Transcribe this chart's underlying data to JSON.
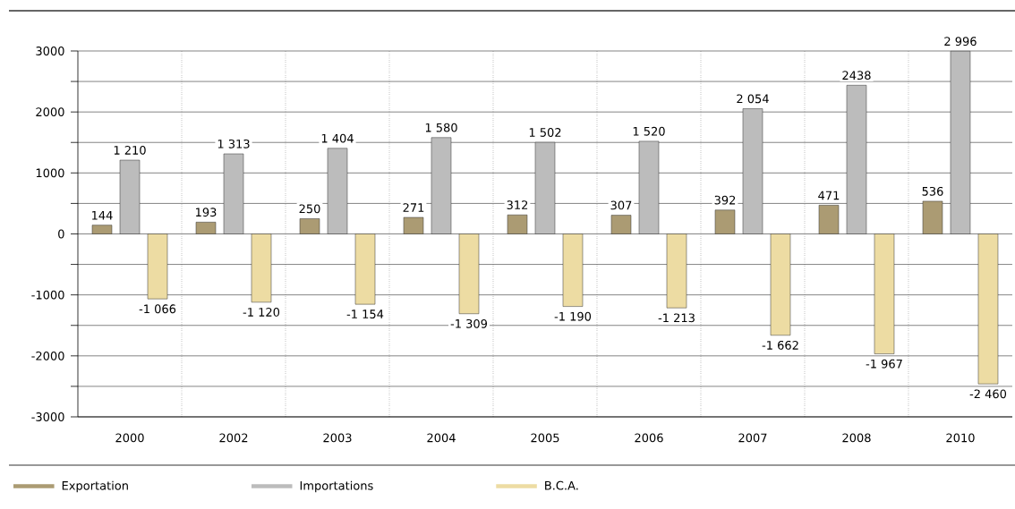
{
  "chart_data": {
    "type": "bar",
    "categories": [
      "2000",
      "2002",
      "2003",
      "2004",
      "2005",
      "2006",
      "2007",
      "2008",
      "2010"
    ],
    "series": [
      {
        "name": "Exportation",
        "color": "#ab9b73",
        "values": [
          144,
          193,
          250,
          271,
          312,
          307,
          392,
          471,
          536
        ],
        "value_labels": [
          "144",
          "193",
          "250",
          "271",
          "312",
          "307",
          "392",
          "471",
          "536"
        ]
      },
      {
        "name": "Importations",
        "color": "#bcbcbc",
        "values": [
          1210,
          1313,
          1404,
          1580,
          1502,
          1520,
          2054,
          2438,
          2996
        ],
        "value_labels": [
          "1 210",
          "1 313",
          "1 404",
          "1 580",
          "1 502",
          "1 520",
          "2 054",
          "2438",
          "2 996"
        ]
      },
      {
        "name": "B.C.A.",
        "color": "#eddca3",
        "values": [
          -1066,
          -1120,
          -1154,
          -1309,
          -1190,
          -1213,
          -1662,
          -1967,
          -2460
        ],
        "value_labels": [
          "-1 066",
          "-1 120",
          "-1 154",
          "-1 309",
          "-1 190",
          "-1 213",
          "-1 662",
          "-1 967",
          "-2 460"
        ]
      }
    ],
    "ylim": [
      -3000,
      3000
    ],
    "yticks": [
      -3000,
      {
        "value": -2500,
        "label": null
      },
      -2000,
      {
        "value": -1500,
        "label": null
      },
      -1000,
      {
        "value": -500,
        "label": null
      },
      0,
      {
        "value": 500,
        "label": null
      },
      1000,
      {
        "value": 1500,
        "label": null
      },
      2000,
      {
        "value": 2500,
        "label": null
      },
      3000
    ],
    "grid": true,
    "legend": "bottom"
  }
}
